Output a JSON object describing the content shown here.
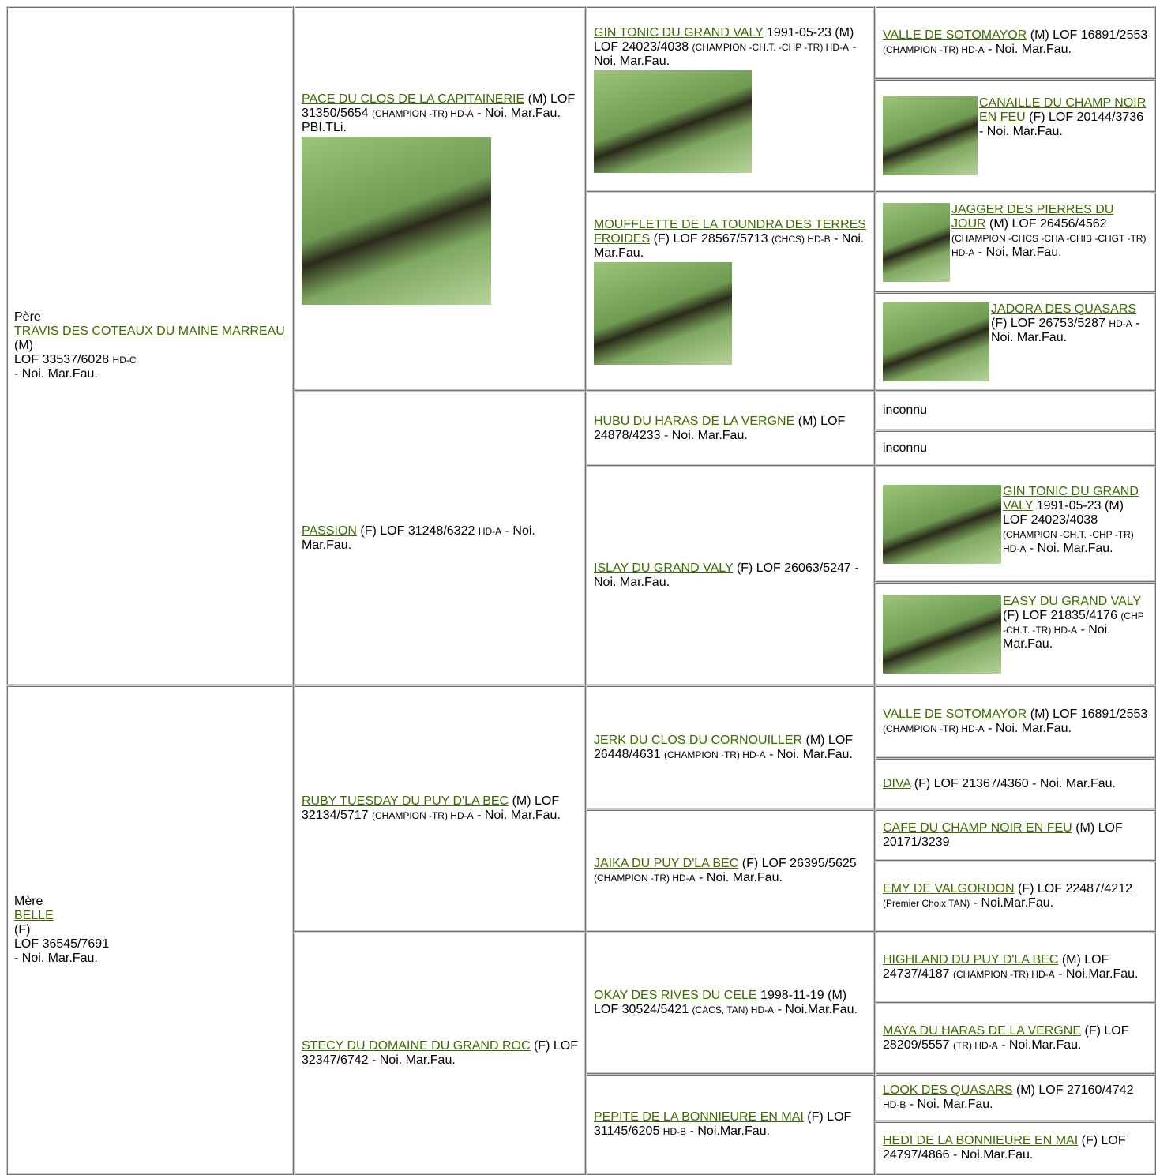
{
  "gen1": [
    {
      "label": "Père",
      "name": "TRAVIS DES COTEAUX DU MAINE MARREAU",
      "sex": "(M)",
      "lof": "LOF 33537/6028",
      "hd": "HD-C",
      "color": "- Noi. Mar.Fau."
    },
    {
      "label": "Mère",
      "name": "BELLE",
      "sex": "(F)",
      "lof": "LOF 36545/7691",
      "color": "- Noi. Mar.Fau."
    }
  ],
  "gen2": [
    {
      "name": "PACE DU CLOS DE LA CAPITAINERIE",
      "parts": [
        {
          "text": "(M) LOF 31350/5654"
        },
        {
          "text": "(CHAMPION -TR) HD-A",
          "small": true
        },
        {
          "text": "- Noi. Mar.Fau. PBI.TLi."
        }
      ]
    },
    {
      "name": "PASSION",
      "parts": [
        {
          "text": "(F) LOF 31248/6322"
        },
        {
          "text": "HD-A",
          "small": true
        },
        {
          "text": "- Noi. Mar.Fau."
        }
      ]
    },
    {
      "name": "RUBY TUESDAY DU PUY D'LA BEC",
      "parts": [
        {
          "text": "(M) LOF 32134/5717"
        },
        {
          "text": "(CHAMPION -TR) HD-A",
          "small": true
        },
        {
          "text": "- Noi. Mar.Fau."
        }
      ]
    },
    {
      "name": "STECY DU DOMAINE DU GRAND ROC",
      "parts": [
        {
          "text": "(F) LOF 32347/6742 - Noi. Mar.Fau."
        }
      ]
    }
  ],
  "gen3": [
    {
      "name": "GIN TONIC DU GRAND VALY",
      "parts": [
        {
          "text": "1991-05-23 (M) LOF 24023/4038"
        },
        {
          "text": "(CHAMPION -CH.T. -CHP -TR) HD-A",
          "small": true
        },
        {
          "text": "- Noi. Mar.Fau."
        }
      ]
    },
    {
      "name": "MOUFFLETTE DE LA TOUNDRA DES TERRES FROIDES",
      "parts": [
        {
          "text": "(F) LOF 28567/5713"
        },
        {
          "text": "(CHCS) HD-B",
          "small": true
        },
        {
          "text": "- Noi. Mar.Fau."
        }
      ]
    },
    {
      "name": "HUBU DU HARAS DE LA VERGNE",
      "parts": [
        {
          "text": "(M) LOF 24878/4233 - Noi. Mar.Fau."
        }
      ]
    },
    {
      "name": "ISLAY DU GRAND VALY",
      "parts": [
        {
          "text": "(F) LOF 26063/5247 - Noi. Mar.Fau."
        }
      ]
    },
    {
      "name": "JERK DU CLOS DU CORNOUILLER",
      "parts": [
        {
          "text": "(M) LOF 26448/4631"
        },
        {
          "text": "(CHAMPION -TR) HD-A",
          "small": true
        },
        {
          "text": "- Noi. Mar.Fau."
        }
      ]
    },
    {
      "name": "JAIKA DU PUY D'LA BEC",
      "parts": [
        {
          "text": "(F) LOF 26395/5625"
        },
        {
          "text": "(CHAMPION -TR) HD-A",
          "small": true
        },
        {
          "text": "- Noi. Mar.Fau."
        }
      ]
    },
    {
      "name": "OKAY DES RIVES DU CELE",
      "parts": [
        {
          "text": "1998-11-19 (M) LOF 30524/5421"
        },
        {
          "text": "(CACS, TAN) HD-A",
          "small": true
        },
        {
          "text": "- Noi.Mar.Fau."
        }
      ]
    },
    {
      "name": "PEPITE DE LA BONNIEURE EN MAI",
      "parts": [
        {
          "text": "(F) LOF 31145/6205"
        },
        {
          "text": "HD-B",
          "small": true
        },
        {
          "text": "- Noi.Mar.Fau."
        }
      ]
    }
  ],
  "gen4": [
    {
      "name": "VALLE DE SOTOMAYOR",
      "parts": [
        {
          "text": "(M) LOF 16891/2553"
        },
        {
          "text": "(CHAMPION -TR) HD-A",
          "small": true
        },
        {
          "text": "- Noi. Mar.Fau."
        }
      ]
    },
    {
      "name": "CANAILLE DU CHAMP NOIR EN FEU",
      "parts": [
        {
          "text": "(F) LOF 20144/3736 - Noi. Mar.Fau."
        }
      ]
    },
    {
      "name": "JAGGER DES PIERRES DU JOUR",
      "parts": [
        {
          "text": "(M) LOF 26456/4562"
        },
        {
          "text": "(CHAMPION -CHCS -CHA -CHIB -CHGT -TR) HD-A",
          "small": true
        },
        {
          "text": "- Noi. Mar.Fau."
        }
      ]
    },
    {
      "name": "JADORA DES QUASARS",
      "parts": [
        {
          "text": "(F) LOF 26753/5287"
        },
        {
          "text": "HD-A",
          "small": true
        },
        {
          "text": "- Noi. Mar.Fau."
        }
      ]
    },
    {
      "parts": [
        {
          "text": "inconnu"
        }
      ]
    },
    {
      "parts": [
        {
          "text": "inconnu"
        }
      ]
    },
    {
      "name": "GIN TONIC DU GRAND VALY",
      "parts": [
        {
          "text": "1991-05-23 (M) LOF 24023/4038"
        },
        {
          "text": "(CHAMPION -CH.T. -CHP -TR) HD-A",
          "small": true
        },
        {
          "text": "- Noi. Mar.Fau."
        }
      ]
    },
    {
      "name": "EASY DU GRAND VALY",
      "parts": [
        {
          "text": "(F) LOF 21835/4176"
        },
        {
          "text": "(CHP -CH.T. -TR) HD-A",
          "small": true
        },
        {
          "text": "- Noi. Mar.Fau."
        }
      ]
    },
    {
      "name": "VALLE DE SOTOMAYOR",
      "parts": [
        {
          "text": "(M) LOF 16891/2553"
        },
        {
          "text": "(CHAMPION -TR) HD-A",
          "small": true
        },
        {
          "text": "- Noi. Mar.Fau."
        }
      ]
    },
    {
      "name": "DIVA",
      "parts": [
        {
          "text": "(F) LOF 21367/4360 - Noi. Mar.Fau."
        }
      ]
    },
    {
      "name": "CAFE DU CHAMP NOIR EN FEU",
      "parts": [
        {
          "text": "(M) LOF 20171/3239"
        }
      ]
    },
    {
      "name": "EMY DE VALGORDON",
      "parts": [
        {
          "text": "(F) LOF 22487/4212"
        },
        {
          "text": "(Premier Choix TAN)",
          "small": true
        },
        {
          "text": "- Noi.Mar.Fau."
        }
      ]
    },
    {
      "name": "HIGHLAND DU PUY D'LA BEC",
      "parts": [
        {
          "text": "(M) LOF 24737/4187"
        },
        {
          "text": "(CHAMPION -TR) HD-A",
          "small": true
        },
        {
          "text": "- Noi.Mar.Fau."
        }
      ]
    },
    {
      "name": "MAYA DU HARAS DE LA VERGNE",
      "parts": [
        {
          "text": "(F) LOF 28209/5557"
        },
        {
          "text": "(TR) HD-A",
          "small": true
        },
        {
          "text": "- Noi.Mar.Fau."
        }
      ]
    },
    {
      "name": "LOOK DES QUASARS",
      "parts": [
        {
          "text": "(M) LOF 27160/4742"
        },
        {
          "text": "HD-B",
          "small": true
        },
        {
          "text": "- Noi. Mar.Fau."
        }
      ]
    },
    {
      "name": "HEDI DE LA BONNIEURE EN MAI",
      "parts": [
        {
          "text": "(F) LOF 24797/4866 - Noi.Mar.Fau."
        }
      ]
    }
  ]
}
